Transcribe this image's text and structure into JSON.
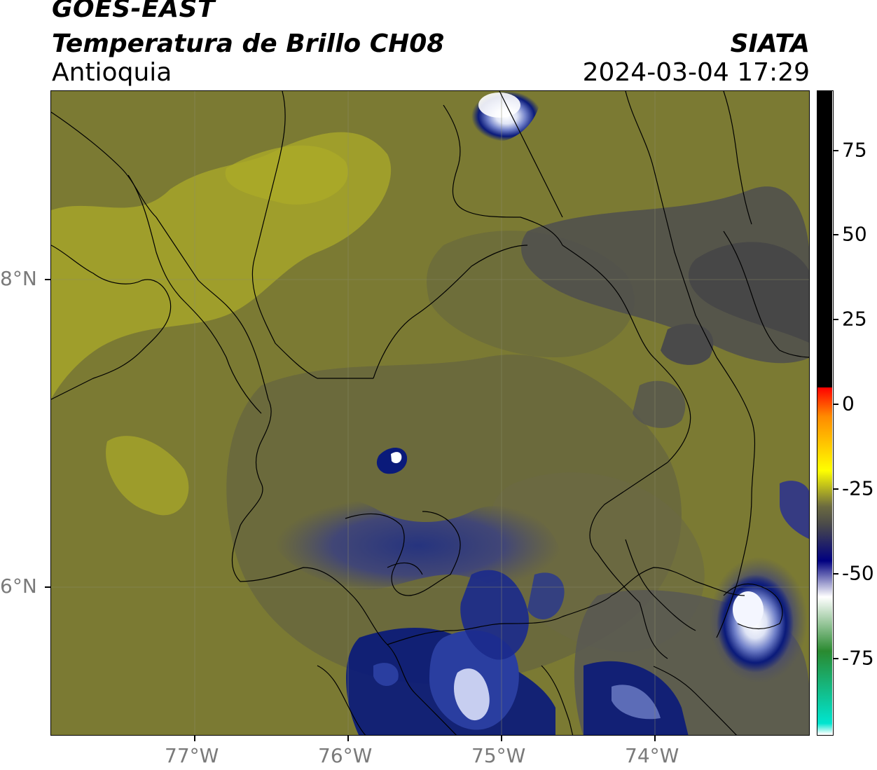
{
  "header": {
    "satellite": "GOES-EAST",
    "product": "Temperatura de Brillo CH08",
    "region": "Antioquia",
    "organization": "SIATA",
    "timestamp": "2024-03-04 17:29"
  },
  "map": {
    "longitude_labels": [
      "77°W",
      "76°W",
      "75°W",
      "74°W"
    ],
    "latitude_labels": [
      "8°N",
      "6°N"
    ],
    "colors": {
      "background_olive": "#7b7a33",
      "dark_olive": "#5e5c3a",
      "gray": "#4f4f4f",
      "light_olive": "#a3a22a",
      "navy": "#0a1a7a",
      "light_blue": "#b8c2ea",
      "white": "#ffffff",
      "border": "#000000"
    }
  },
  "colorbar": {
    "labels": [
      "75",
      "50",
      "25",
      "0",
      "-25",
      "-50",
      "-75"
    ],
    "stops": [
      {
        "value": 90,
        "color": "#000000"
      },
      {
        "value": 8,
        "color": "#000000"
      },
      {
        "value": 8,
        "color": "#ff0000"
      },
      {
        "value": 0,
        "color": "#ff8a00"
      },
      {
        "value": -15,
        "color": "#ffff00"
      },
      {
        "value": -25,
        "color": "#6b6a40"
      },
      {
        "value": -30,
        "color": "#4a4a4a"
      },
      {
        "value": -40,
        "color": "#000080"
      },
      {
        "value": -50,
        "color": "#ffffff"
      },
      {
        "value": -65,
        "color": "#2a8a30"
      },
      {
        "value": -85,
        "color": "#00e5d0"
      },
      {
        "value": -88,
        "color": "#ffffff"
      }
    ]
  }
}
